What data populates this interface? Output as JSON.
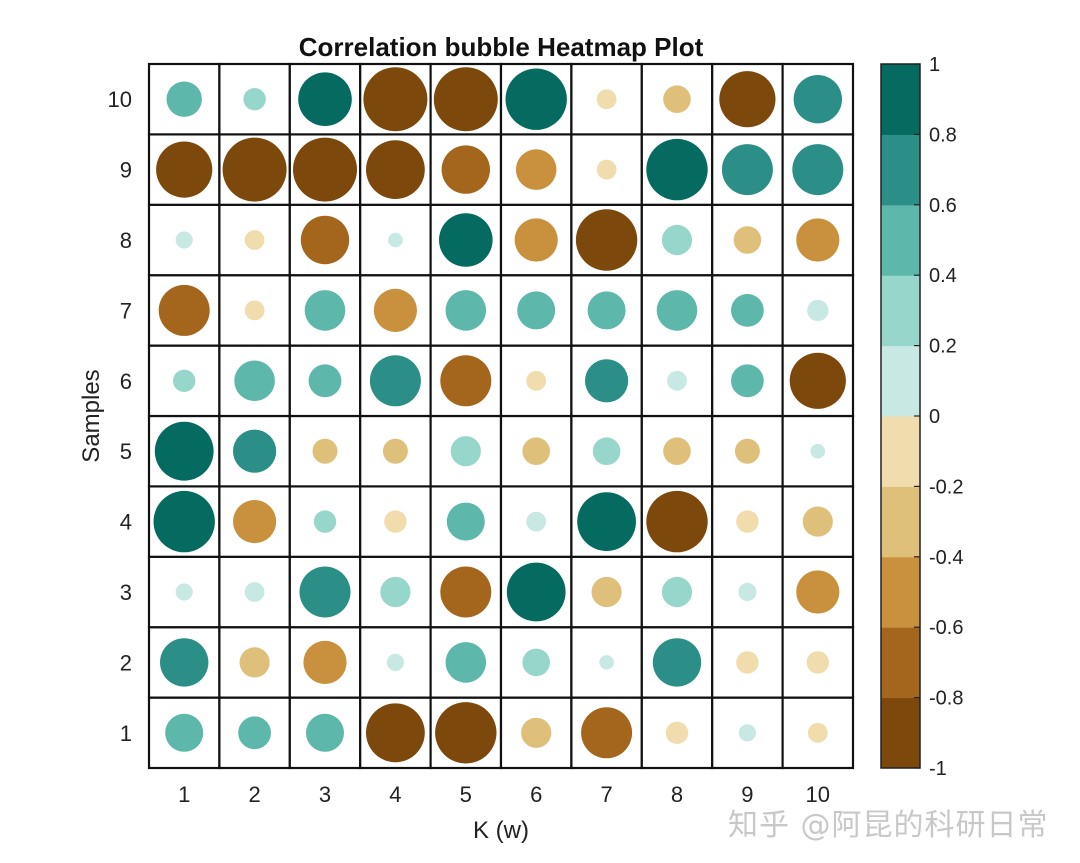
{
  "chart_data": {
    "type": "heatmap",
    "title": "Correlation bubble Heatmap Plot",
    "xlabel": "K (w)",
    "ylabel": "Samples",
    "x_categories": [
      "1",
      "2",
      "3",
      "4",
      "5",
      "6",
      "7",
      "8",
      "9",
      "10"
    ],
    "y_categories": [
      "1",
      "2",
      "3",
      "4",
      "5",
      "6",
      "7",
      "8",
      "9",
      "10"
    ],
    "value_range": [
      -1,
      1
    ],
    "colorbar_ticks": [
      "1",
      "0.8",
      "0.6",
      "0.4",
      "0.2",
      "0",
      "-0.2",
      "-0.4",
      "-0.6",
      "-0.8",
      "-1"
    ],
    "colormap": [
      "#7c480b",
      "#a4661d",
      "#c9913e",
      "#dfc07b",
      "#f0dcac",
      "#c8e9e3",
      "#96d6cb",
      "#5db7aa",
      "#2b8f87",
      "#056a60"
    ],
    "values": [
      [
        0.5,
        0.4,
        0.5,
        -0.9,
        -0.95,
        -0.35,
        -0.75,
        -0.2,
        0.1,
        -0.15
      ],
      [
        0.7,
        -0.35,
        -0.6,
        0.1,
        0.55,
        0.3,
        0.05,
        0.7,
        -0.2,
        -0.2
      ],
      [
        0.1,
        0.15,
        0.75,
        0.35,
        -0.75,
        0.9,
        -0.35,
        0.35,
        0.12,
        -0.6
      ],
      [
        0.95,
        -0.6,
        0.2,
        -0.2,
        0.5,
        0.15,
        0.9,
        -0.95,
        -0.2,
        -0.35
      ],
      [
        0.9,
        0.6,
        -0.25,
        -0.25,
        0.35,
        -0.3,
        0.3,
        -0.3,
        -0.25,
        0.05
      ],
      [
        0.2,
        0.55,
        0.4,
        0.75,
        -0.75,
        -0.15,
        0.6,
        0.15,
        0.4,
        -0.85
      ],
      [
        -0.75,
        -0.15,
        0.55,
        -0.6,
        0.55,
        0.5,
        0.5,
        0.55,
        0.4,
        0.18
      ],
      [
        0.1,
        -0.15,
        -0.7,
        0.05,
        0.8,
        -0.6,
        -0.95,
        0.35,
        -0.3,
        -0.6
      ],
      [
        -0.85,
        -1.0,
        -1.0,
        -0.9,
        -0.7,
        -0.55,
        -0.15,
        0.95,
        0.75,
        0.75
      ],
      [
        0.45,
        0.2,
        0.8,
        -1.0,
        -1.0,
        0.95,
        -0.15,
        -0.3,
        -0.85,
        0.7
      ]
    ]
  },
  "watermark": "知乎 @阿昆的科研日常"
}
